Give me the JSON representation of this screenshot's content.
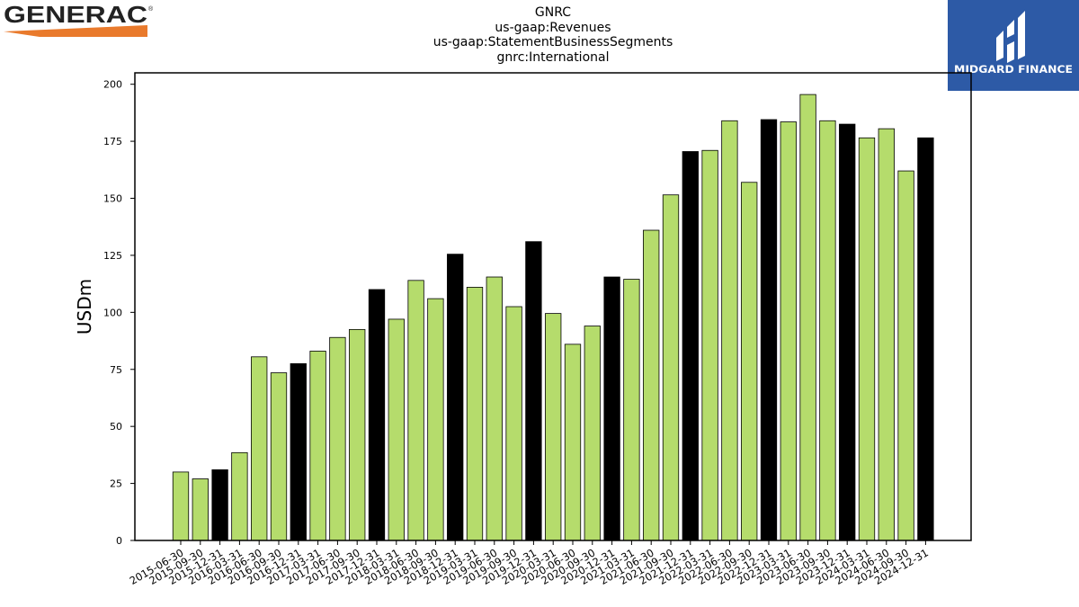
{
  "header": {
    "brand_logo": "generac-logo",
    "brand_text": "GENERAC",
    "brand_registered": "®",
    "partner_logo": "midgard-finance-logo",
    "partner_text": "MIDGARD FINANCE"
  },
  "chart_data": {
    "type": "bar",
    "title_lines": [
      "GNRC",
      "us-gaap:Revenues",
      "us-gaap:StatementBusinessSegments",
      "gnrc:International"
    ],
    "ylabel": "USDm",
    "xlabel": "",
    "ylim": [
      0,
      205
    ],
    "yticks": [
      0,
      25,
      50,
      75,
      100,
      125,
      150,
      175,
      200
    ],
    "grid": false,
    "colors": {
      "quarter": "#b5dc6c",
      "year_end": "#000000",
      "edge": "#000000"
    },
    "categories": [
      "2015-06-30",
      "2015-09-30",
      "2015-12-31",
      "2016-03-31",
      "2016-06-30",
      "2016-09-30",
      "2016-12-31",
      "2017-03-31",
      "2017-06-30",
      "2017-09-30",
      "2017-12-31",
      "2018-03-31",
      "2018-06-30",
      "2018-09-30",
      "2018-12-31",
      "2019-03-31",
      "2019-06-30",
      "2019-09-30",
      "2019-12-31",
      "2020-03-31",
      "2020-06-30",
      "2020-09-30",
      "2020-12-31",
      "2021-03-31",
      "2021-06-30",
      "2021-09-30",
      "2021-12-31",
      "2022-03-31",
      "2022-06-30",
      "2022-09-30",
      "2022-12-31",
      "2023-03-31",
      "2023-06-30",
      "2023-09-30",
      "2023-12-31",
      "2024-03-31",
      "2024-06-30",
      "2024-09-30",
      "2024-12-31"
    ],
    "values": [
      30,
      27,
      31,
      38.5,
      80.5,
      73.5,
      77.5,
      83,
      89,
      92.5,
      110,
      97,
      114,
      106,
      125.5,
      111,
      115.5,
      102.5,
      131,
      99.5,
      86,
      94,
      115.5,
      114.5,
      136,
      151.5,
      170.5,
      171,
      184,
      157,
      184.5,
      183.5,
      195.5,
      184,
      182.5,
      176.5,
      180.5,
      162,
      176.5
    ]
  }
}
